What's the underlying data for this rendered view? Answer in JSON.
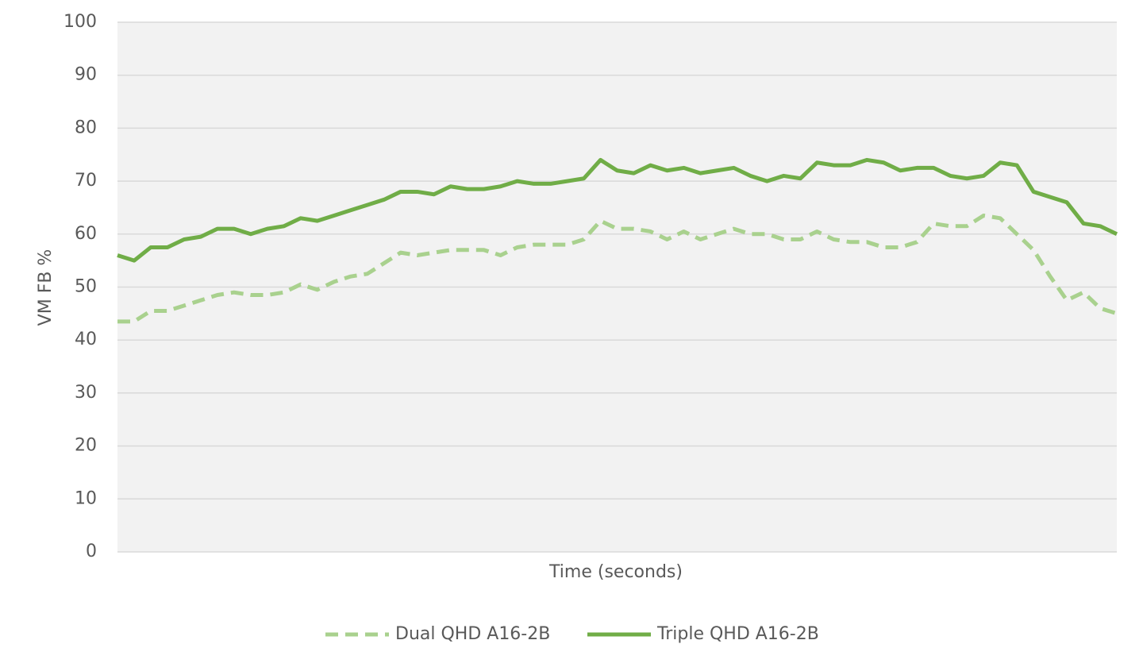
{
  "chart_data": {
    "type": "line",
    "x_label": "Time (seconds)",
    "y_label": "VM FB %",
    "categories": [
      null,
      null,
      null,
      null,
      null,
      null,
      null,
      null,
      null,
      null,
      null,
      null,
      null,
      null,
      null,
      null,
      null,
      null,
      null,
      null,
      null,
      null,
      null,
      null,
      null,
      null,
      null,
      null,
      null,
      null,
      null,
      null,
      null,
      null,
      null,
      null,
      null,
      null,
      null,
      null,
      null,
      null,
      null,
      null,
      null,
      null,
      null,
      null,
      null,
      null,
      null,
      null,
      null,
      null,
      null,
      null,
      null,
      null,
      null,
      null,
      null
    ],
    "series": [
      {
        "name": "Dual QHD A16-2B",
        "color": "#a9d18e",
        "dash": true,
        "values": [
          43.5,
          43.5,
          45.5,
          45.5,
          46.5,
          47.5,
          48.5,
          49,
          48.5,
          48.5,
          49,
          50.5,
          49.5,
          51,
          52,
          52.5,
          54.5,
          56.5,
          56,
          56.5,
          57,
          57,
          57,
          56,
          57.5,
          58,
          58,
          58,
          59,
          62.5,
          61,
          61,
          60.5,
          59,
          60.5,
          59,
          60,
          61,
          60,
          60,
          59,
          59,
          60.5,
          59,
          58.5,
          58.5,
          57.5,
          57.5,
          58.5,
          62,
          61.5,
          61.5,
          63.5,
          63,
          60,
          57,
          52,
          47.5,
          49,
          46,
          45
        ]
      },
      {
        "name": "Triple QHD A16-2B",
        "color": "#70ad47",
        "dash": false,
        "values": [
          56,
          55,
          57.5,
          57.5,
          59,
          59.5,
          61,
          61,
          60,
          61,
          61.5,
          63,
          62.5,
          63.5,
          64.5,
          65.5,
          66.5,
          68,
          68,
          67.5,
          69,
          68.5,
          68.5,
          69,
          70,
          69.5,
          69.5,
          70,
          70.5,
          74,
          72,
          71.5,
          73,
          72,
          72.5,
          71.5,
          72,
          72.5,
          71,
          70,
          71,
          70.5,
          73.5,
          73,
          73,
          74,
          73.5,
          72,
          72.5,
          72.5,
          71,
          70.5,
          71,
          73.5,
          73,
          68,
          67,
          66,
          62,
          61.5,
          60
        ]
      }
    ],
    "ylim": [
      0,
      100
    ],
    "yticks": [
      0,
      10,
      20,
      30,
      40,
      50,
      60,
      70,
      80,
      90,
      100
    ],
    "grid": true,
    "legend": "bottom"
  }
}
